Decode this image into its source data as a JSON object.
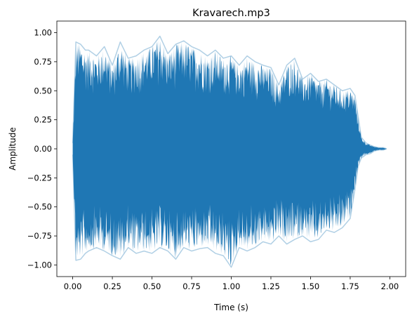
{
  "chart_data": {
    "type": "line",
    "title": "Kravarech.mp3",
    "xlabel": "Time (s)",
    "ylabel": "Amplitude",
    "xlim": [
      -0.1,
      2.1
    ],
    "ylim": [
      -1.1,
      1.1
    ],
    "xticks": [
      0.0,
      0.25,
      0.5,
      0.75,
      1.0,
      1.25,
      1.5,
      1.75,
      2.0
    ],
    "xtick_labels": [
      "0.00",
      "0.25",
      "0.50",
      "0.75",
      "1.00",
      "1.25",
      "1.50",
      "1.75",
      "2.00"
    ],
    "yticks": [
      -1.0,
      -0.75,
      -0.5,
      -0.25,
      0.0,
      0.25,
      0.5,
      0.75,
      1.0
    ],
    "ytick_labels": [
      "−1.00",
      "−0.75",
      "−0.50",
      "−0.25",
      "0.00",
      "0.25",
      "0.50",
      "0.75",
      "1.00"
    ],
    "grid": false,
    "color": "#1f77b4",
    "series": [
      {
        "x": [
          0.0,
          0.02,
          0.05,
          0.08,
          0.1,
          0.15,
          0.2,
          0.25,
          0.3,
          0.35,
          0.4,
          0.45,
          0.5,
          0.55,
          0.6,
          0.65,
          0.7,
          0.75,
          0.8,
          0.85,
          0.9,
          0.95,
          1.0,
          1.05,
          1.1,
          1.15,
          1.2,
          1.25,
          1.3,
          1.35,
          1.4,
          1.45,
          1.5,
          1.55,
          1.6,
          1.65,
          1.7,
          1.75,
          1.78,
          1.8,
          1.82,
          1.85,
          1.88,
          1.9,
          1.93,
          1.96,
          1.98
        ],
        "max": [
          0.05,
          0.92,
          0.9,
          0.85,
          0.85,
          0.8,
          0.88,
          0.72,
          0.92,
          0.78,
          0.8,
          0.85,
          0.88,
          0.97,
          0.82,
          0.9,
          0.93,
          0.88,
          0.85,
          0.8,
          0.85,
          0.78,
          0.8,
          0.72,
          0.8,
          0.75,
          0.72,
          0.7,
          0.55,
          0.72,
          0.78,
          0.6,
          0.65,
          0.58,
          0.6,
          0.55,
          0.5,
          0.52,
          0.46,
          0.28,
          0.1,
          0.05,
          0.03,
          0.02,
          0.01,
          0.01,
          0.0
        ],
        "min": [
          -0.05,
          -0.96,
          -0.95,
          -0.9,
          -0.88,
          -0.85,
          -0.88,
          -0.92,
          -0.95,
          -0.85,
          -0.9,
          -0.88,
          -0.9,
          -0.85,
          -0.88,
          -0.95,
          -0.85,
          -0.88,
          -0.86,
          -0.85,
          -0.9,
          -0.92,
          -1.02,
          -0.85,
          -0.88,
          -0.85,
          -0.8,
          -0.82,
          -0.75,
          -0.82,
          -0.78,
          -0.75,
          -0.8,
          -0.78,
          -0.7,
          -0.72,
          -0.68,
          -0.6,
          -0.35,
          -0.15,
          -0.08,
          -0.05,
          -0.04,
          -0.02,
          -0.01,
          -0.01,
          0.0
        ]
      }
    ]
  }
}
